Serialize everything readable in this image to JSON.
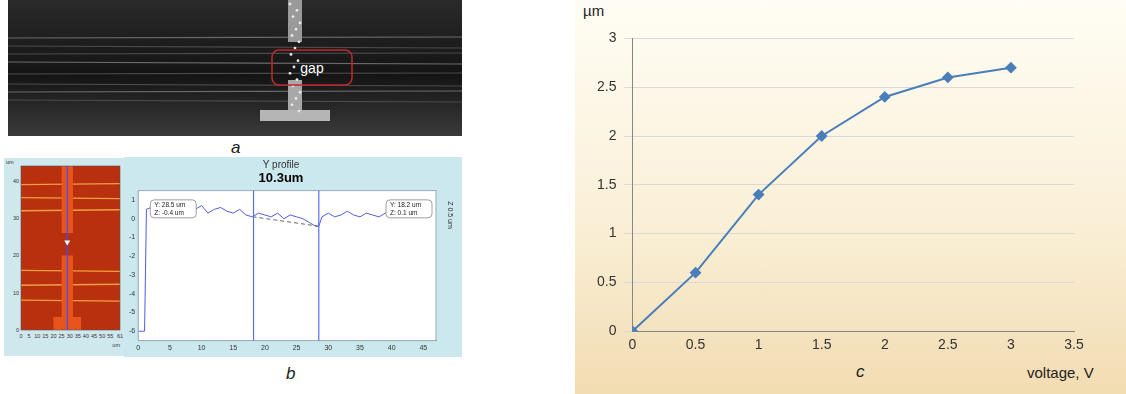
{
  "panels": [
    {
      "label": "a",
      "annotation": "gap"
    },
    {
      "label": "b"
    },
    {
      "label": "c"
    }
  ],
  "height_map": {
    "xlim": [
      0,
      61
    ],
    "ylim": [
      0,
      44
    ],
    "xticks": [
      0,
      5,
      10,
      15,
      20,
      25,
      30,
      35,
      40,
      45,
      50,
      55,
      61
    ],
    "yticks": [
      0,
      10,
      20,
      30,
      40
    ],
    "unit": "um",
    "profile_x": 28.5
  },
  "chart_data": [
    {
      "type": "line",
      "title": "Y profile",
      "subtitle": "10.3um",
      "x": [
        0,
        1,
        1.3,
        2,
        3,
        4,
        5,
        6,
        7,
        8,
        9,
        10,
        11,
        12,
        13,
        14,
        15,
        16,
        17,
        18,
        19,
        20,
        21,
        22,
        23,
        24,
        25,
        26,
        27,
        28,
        28.5,
        29,
        30,
        31,
        32,
        33,
        34,
        35,
        36,
        37,
        38,
        39,
        40,
        41,
        42,
        43,
        44,
        45,
        46
      ],
      "values": [
        -6,
        -6,
        0.5,
        0.6,
        0.3,
        0.7,
        0.5,
        0.6,
        0.4,
        0.6,
        0.5,
        0.7,
        0.3,
        0.5,
        0.6,
        0.4,
        0.3,
        0.5,
        0.2,
        0.1,
        0.3,
        0.2,
        0.1,
        0.3,
        0,
        0.2,
        0.1,
        0,
        -0.2,
        -0.4,
        -0.4,
        0.1,
        0.3,
        0.1,
        0.2,
        0.4,
        0.2,
        0.1,
        0.3,
        0.2,
        0.1,
        0.3,
        0.2,
        0.1,
        0.2,
        0.3,
        0.2,
        0.1,
        0.2
      ],
      "color": "#4f5fe0",
      "xlim": [
        0,
        47
      ],
      "xticks": [
        0,
        5,
        10,
        15,
        20,
        25,
        30,
        35,
        40,
        45
      ],
      "ylim": [
        -6.5,
        1.5
      ],
      "yticks": [
        -6,
        -5,
        -4,
        -3,
        -2,
        -1,
        0,
        1
      ],
      "grid": false,
      "cursors": [
        {
          "x": 28.5,
          "z": -0.4,
          "label": [
            "Y: 28.5 um",
            "Z: -0.4 um"
          ]
        },
        {
          "x": 18.2,
          "z": 0.1,
          "label": [
            "Y: 18.2 um",
            "Z: 0.1 um"
          ]
        }
      ],
      "scale_label": "Z 0.5 um"
    },
    {
      "type": "line",
      "x": [
        0,
        0.5,
        1,
        1.5,
        2,
        2.5,
        3
      ],
      "values": [
        0,
        0.6,
        1.4,
        2,
        2.4,
        2.6,
        2.7
      ],
      "color": "#4a7ebb",
      "marker": "diamond",
      "xlim": [
        0,
        3.5
      ],
      "xticks": [
        0,
        0.5,
        1,
        1.5,
        2,
        2.5,
        3,
        3.5
      ],
      "ylim": [
        0,
        3
      ],
      "yticks": [
        0,
        0.5,
        1,
        1.5,
        2,
        2.5,
        3
      ],
      "grid": "y",
      "x_label": "voltage, V",
      "y_label": "µm"
    }
  ]
}
